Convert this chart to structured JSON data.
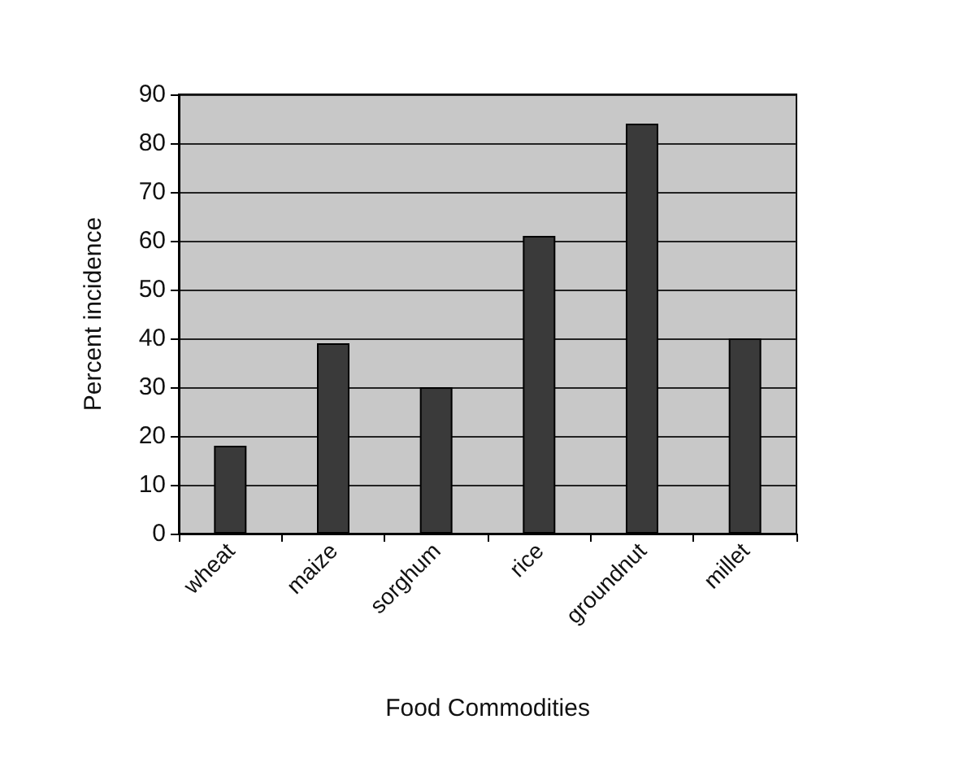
{
  "chart_data": {
    "type": "bar",
    "xlabel": "Food Commodities",
    "ylabel": "Percent incidence",
    "categories": [
      "wheat",
      "maize",
      "sorghum",
      "rice",
      "groundnut",
      "millet"
    ],
    "values": [
      18,
      39,
      30,
      61,
      84,
      40
    ],
    "color": "#3a3a3a",
    "ylim": [
      0,
      90
    ],
    "yticks": [
      0,
      10,
      20,
      30,
      40,
      50,
      60,
      70,
      80,
      90
    ],
    "grid": "y"
  }
}
